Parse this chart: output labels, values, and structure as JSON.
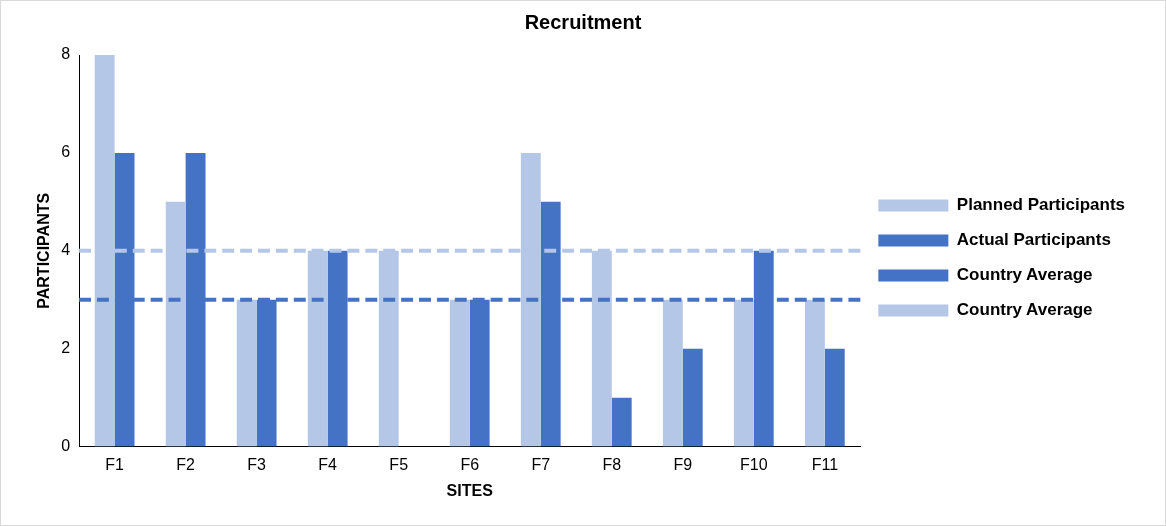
{
  "chart_data": {
    "type": "bar",
    "title": "Recruitment",
    "xlabel": "SITES",
    "ylabel": "PARTICIPANTS",
    "categories": [
      "F1",
      "F2",
      "F3",
      "F4",
      "F5",
      "F6",
      "F7",
      "F8",
      "F9",
      "F10",
      "F11"
    ],
    "series": [
      {
        "name": "Planned Participants",
        "color": "#b4c7e7",
        "values": [
          8,
          5,
          3,
          4,
          4,
          3,
          6,
          4,
          3,
          3,
          3
        ]
      },
      {
        "name": "Actual Participants",
        "color": "#4472c4",
        "values": [
          6,
          6,
          3,
          4,
          null,
          3,
          5,
          1,
          2,
          4,
          2
        ]
      }
    ],
    "ref_lines": [
      {
        "axis": "y",
        "value": 3,
        "label": "Country Average",
        "color": "#4472c4",
        "line_style": "dashed"
      },
      {
        "axis": "y",
        "value": 4,
        "label": "Country Average",
        "color": "#b4c7e7",
        "line_style": "dashed"
      }
    ],
    "ylim": [
      0,
      8
    ],
    "yticks": [
      0,
      2,
      4,
      6,
      8
    ],
    "grid": false,
    "legend": "right"
  }
}
